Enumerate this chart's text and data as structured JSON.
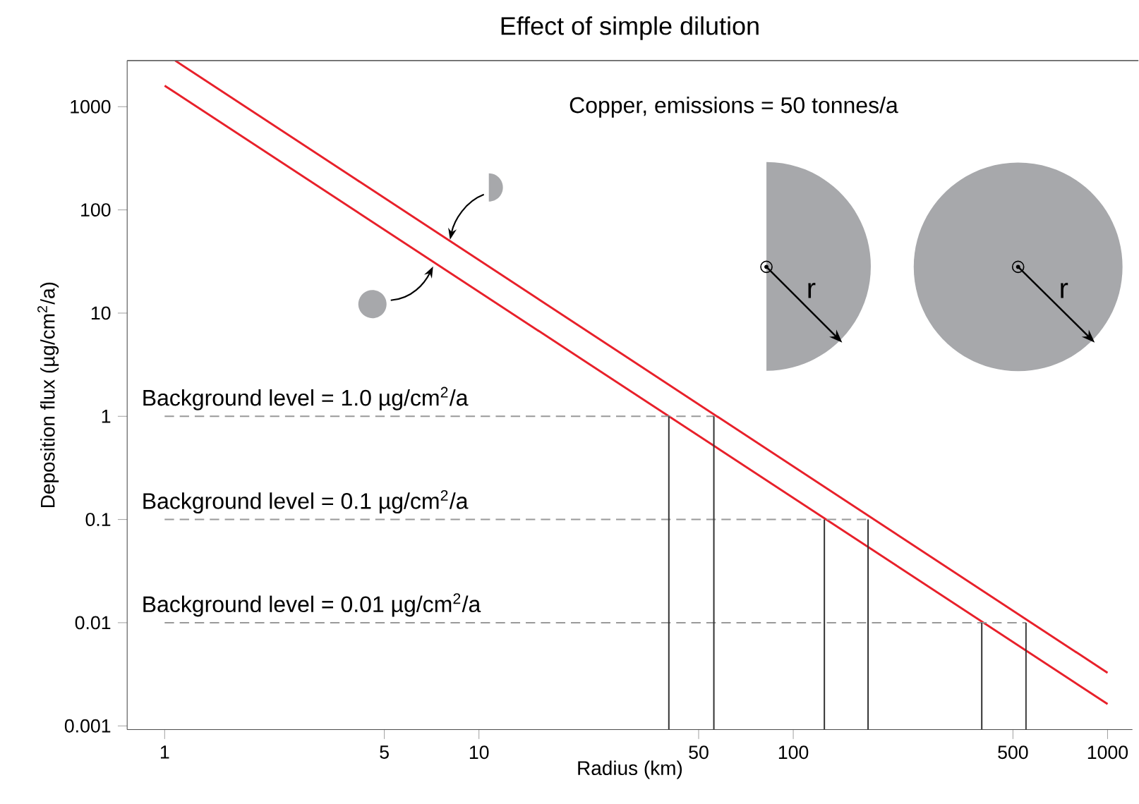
{
  "chart_data": {
    "type": "line",
    "title": "Effect of simple dilution",
    "xlabel": "Radius (km)",
    "ylabel": "Deposition flux (µg/cm$^{2}$/a)",
    "log": "xy",
    "xlim": [
      0.76,
      1200
    ],
    "ylim": [
      0.00092,
      2800
    ],
    "xticks": [
      1,
      5,
      10,
      50,
      100,
      500,
      1000
    ],
    "yticks": [
      0.001,
      0.01,
      0.1,
      1,
      10,
      100,
      1000
    ],
    "series": [
      {
        "color": "#e8202a",
        "x": [
          1.08,
          1000
        ],
        "values": [
          2800,
          0.00327
        ]
      },
      {
        "color": "#e8202a",
        "x": [
          1,
          1000
        ],
        "values": [
          1600,
          0.00163
        ]
      },
      {
        "color": "#999999",
        "line_style": "dashed",
        "x": [
          1,
          55.9
        ],
        "values": [
          1,
          1
        ]
      },
      {
        "color": "#999999",
        "line_style": "dashed",
        "x": [
          1,
          173
        ],
        "values": [
          0.1,
          0.1
        ]
      },
      {
        "color": "#999999",
        "line_style": "dashed",
        "x": [
          1,
          550
        ],
        "values": [
          0.01,
          0.01
        ]
      },
      {
        "color": "#333333",
        "x": [
          40.2,
          40.2
        ],
        "values": [
          0.00092,
          1
        ]
      },
      {
        "color": "#333333",
        "x": [
          55.9,
          55.9
        ],
        "values": [
          0.00092,
          1
        ]
      },
      {
        "color": "#333333",
        "x": [
          125.6,
          125.6
        ],
        "values": [
          0.00092,
          0.1
        ]
      },
      {
        "color": "#333333",
        "x": [
          173,
          173
        ],
        "values": [
          0.00092,
          0.1
        ]
      },
      {
        "color": "#333333",
        "x": [
          398,
          398
        ],
        "values": [
          0.00092,
          0.01
        ]
      },
      {
        "color": "#333333",
        "x": [
          550,
          550
        ],
        "values": [
          0.00092,
          0.01
        ]
      }
    ],
    "annotations": [
      "Copper, emissions = 50 tonnes/a",
      {
        "text": "Background level = 1.0 µg/cm$^{2}$/a",
        "y": 1
      },
      {
        "text": "Background level = 0.1 µg/cm$^{2}$/a",
        "y": 0.1
      },
      {
        "text": "Background level = 0.01 µg/cm$^{2}$/a",
        "y": 0.01
      },
      "r",
      "r"
    ]
  }
}
